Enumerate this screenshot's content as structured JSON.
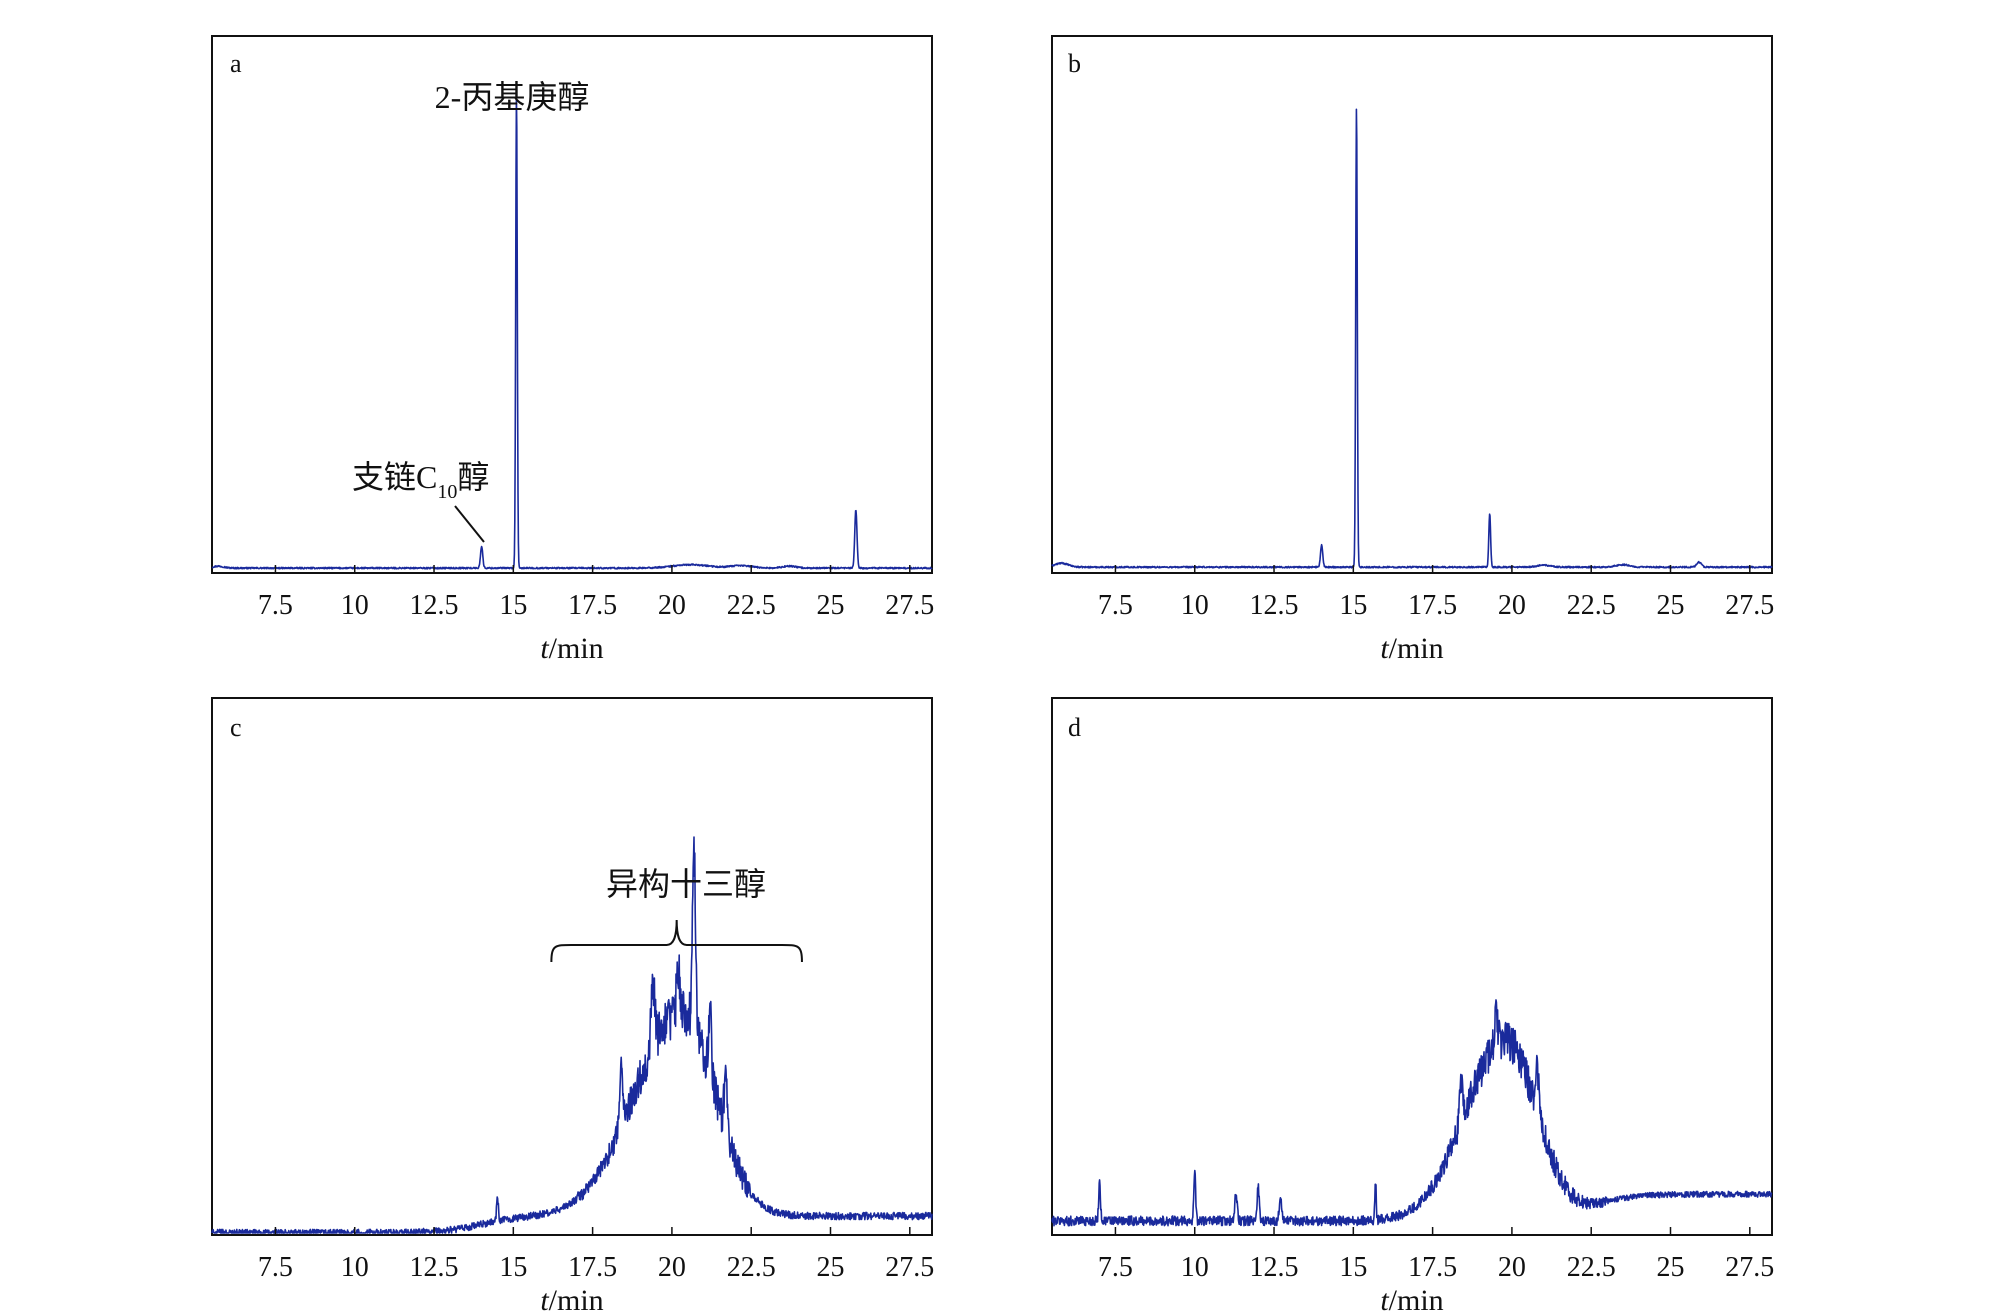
{
  "chart_data": [
    {
      "panel_label": "a",
      "type": "line",
      "xlabel_italic": "t",
      "xlabel_unit": "/min",
      "xticks": [
        "7.5",
        "10",
        "12.5",
        "15",
        "17.5",
        "20",
        "22.5",
        "25",
        "27.5"
      ],
      "xlim": [
        5.5,
        28.2
      ],
      "ylim": [
        0,
        1
      ],
      "series": [
        {
          "color": "#1a2a9c",
          "baseline": 0.006,
          "peaks": [
            {
              "x": 5.7,
              "h": 0.004,
              "w": 0.25
            },
            {
              "x": 14.0,
              "h": 0.045,
              "w": 0.05
            },
            {
              "x": 15.1,
              "h": 0.98,
              "w": 0.035
            },
            {
              "x": 20.6,
              "h": 0.007,
              "w": 0.8
            },
            {
              "x": 22.2,
              "h": 0.005,
              "w": 0.5
            },
            {
              "x": 23.7,
              "h": 0.004,
              "w": 0.3
            },
            {
              "x": 25.8,
              "h": 0.12,
              "w": 0.05
            }
          ],
          "noise": 0.0015
        }
      ],
      "annotations": [
        {
          "text": "2-丙基庚醇",
          "peak_x": 15.1
        },
        {
          "text_main": "支链C",
          "text_sub": "10",
          "text_tail": "醇",
          "peak_x": 14.0
        }
      ]
    },
    {
      "panel_label": "b",
      "type": "line",
      "xlabel_italic": "t",
      "xlabel_unit": "/min",
      "xticks": [
        "7.5",
        "10",
        "12.5",
        "15",
        "17.5",
        "20",
        "22.5",
        "25",
        "27.5"
      ],
      "xlim": [
        5.5,
        28.2
      ],
      "ylim": [
        0,
        1
      ],
      "series": [
        {
          "color": "#1a2a9c",
          "baseline": 0.008,
          "peaks": [
            {
              "x": 5.8,
              "h": 0.008,
              "w": 0.3
            },
            {
              "x": 14.0,
              "h": 0.045,
              "w": 0.05
            },
            {
              "x": 15.1,
              "h": 0.95,
              "w": 0.035
            },
            {
              "x": 19.3,
              "h": 0.11,
              "w": 0.04
            },
            {
              "x": 21.0,
              "h": 0.004,
              "w": 0.3
            },
            {
              "x": 23.5,
              "h": 0.005,
              "w": 0.3
            },
            {
              "x": 25.9,
              "h": 0.01,
              "w": 0.1
            }
          ],
          "noise": 0.0015
        }
      ],
      "annotations": []
    },
    {
      "panel_label": "c",
      "type": "line",
      "xlabel_italic": "t",
      "xlabel_unit": "/min",
      "xticks": [
        "7.5",
        "10",
        "12.5",
        "15",
        "17.5",
        "20",
        "22.5",
        "25",
        "27.5"
      ],
      "xlim": [
        5.5,
        28.2
      ],
      "ylim": [
        0,
        1
      ],
      "series": [
        {
          "color": "#1a2a9c",
          "baseline": 0.0,
          "hump": {
            "x": 20.3,
            "h": 0.42,
            "w_left": 2.1,
            "w_right": 1.5
          },
          "tail": {
            "start": 14.0,
            "level": 0.035
          },
          "peaks": [
            {
              "x": 14.5,
              "h": 0.05,
              "w": 0.04
            },
            {
              "x": 18.4,
              "h": 0.12,
              "w": 0.08
            },
            {
              "x": 19.4,
              "h": 0.13,
              "w": 0.08
            },
            {
              "x": 20.2,
              "h": 0.1,
              "w": 0.07
            },
            {
              "x": 20.7,
              "h": 0.36,
              "w": 0.07
            },
            {
              "x": 21.2,
              "h": 0.14,
              "w": 0.06
            },
            {
              "x": 21.7,
              "h": 0.12,
              "w": 0.07
            }
          ],
          "noise": 0.05,
          "noise_region": [
            17.0,
            22.5
          ]
        }
      ],
      "annotations": [
        {
          "text": "异构十三醇",
          "bracket_from": 16.2,
          "bracket_to": 24.1
        }
      ]
    },
    {
      "panel_label": "d",
      "type": "line",
      "xlabel_italic": "t",
      "xlabel_unit": "/min",
      "xticks": [
        "7.5",
        "10",
        "12.5",
        "15",
        "17.5",
        "20",
        "22.5",
        "25",
        "27.5"
      ],
      "xlim": [
        5.5,
        28.2
      ],
      "ylim": [
        0,
        1
      ],
      "series": [
        {
          "color": "#1a2a9c",
          "baseline": 0.025,
          "hump": {
            "x": 19.8,
            "h": 0.37,
            "w_left": 1.8,
            "w_right": 1.4
          },
          "tail": {
            "start": 22.5,
            "level": 0.055
          },
          "peaks": [
            {
              "x": 7.0,
              "h": 0.08,
              "w": 0.04
            },
            {
              "x": 10.0,
              "h": 0.1,
              "w": 0.04
            },
            {
              "x": 11.3,
              "h": 0.06,
              "w": 0.05
            },
            {
              "x": 12.0,
              "h": 0.07,
              "w": 0.05
            },
            {
              "x": 12.7,
              "h": 0.05,
              "w": 0.05
            },
            {
              "x": 15.7,
              "h": 0.08,
              "w": 0.03
            },
            {
              "x": 18.4,
              "h": 0.08,
              "w": 0.07
            },
            {
              "x": 19.5,
              "h": 0.07,
              "w": 0.07
            },
            {
              "x": 20.8,
              "h": 0.09,
              "w": 0.07
            }
          ],
          "noise": 0.04,
          "noise_region": [
            5.5,
            23.0
          ]
        }
      ],
      "annotations": []
    }
  ]
}
